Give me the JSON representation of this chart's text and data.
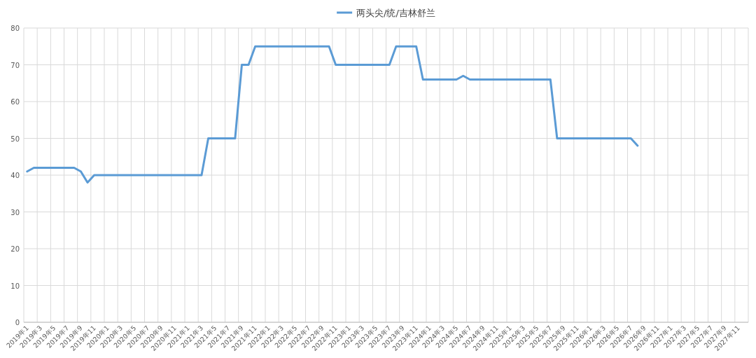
{
  "chart_data": {
    "type": "line",
    "categories": [
      "2019年1",
      null,
      "2019年3",
      null,
      "2019年5",
      null,
      "2019年7",
      null,
      "2019年9",
      null,
      "2019年11",
      null,
      "2020年1",
      null,
      "2020年3",
      null,
      "2020年5",
      null,
      "2020年7",
      null,
      "2020年9",
      null,
      "2020年11",
      null,
      "2021年1",
      null,
      "2021年3",
      null,
      "2021年5",
      null,
      "2021年7",
      null,
      "2021年9",
      null,
      "2021年11",
      null,
      "2022年1",
      null,
      "2022年3",
      null,
      "2022年5",
      null,
      "2022年7",
      null,
      "2022年9",
      null,
      "2022年11",
      null,
      "2023年1",
      null,
      "2023年3",
      null,
      "2023年5",
      null,
      "2023年7",
      null,
      "2023年9",
      null,
      "2023年11",
      null,
      "2024年1",
      null,
      "2024年3",
      null,
      "2024年5",
      null,
      "2024年7",
      null,
      "2024年9",
      null,
      "2024年11",
      null,
      "2025年1",
      null,
      "2025年3",
      null,
      "2025年5",
      null,
      "2025年7",
      null,
      "2025年9",
      null,
      "2025年11",
      null,
      "2026年1",
      null,
      "2026年3",
      null,
      "2026年5",
      null,
      "2026年7",
      null,
      "2026年9",
      null,
      "2026年11",
      null,
      "2027年1",
      null,
      "2027年3",
      null,
      "2027年5",
      null,
      "2027年7",
      null,
      "2027年9",
      null,
      "2027年11",
      null
    ],
    "series": [
      {
        "name": "两头尖/统/吉林舒兰",
        "color": "#5b9bd5",
        "values": [
          41,
          42,
          42,
          42,
          42,
          42,
          42,
          42,
          41,
          38,
          40,
          40,
          40,
          40,
          40,
          40,
          40,
          40,
          40,
          40,
          40,
          40,
          40,
          40,
          40,
          40,
          40,
          50,
          50,
          50,
          50,
          50,
          70,
          70,
          75,
          75,
          75,
          75,
          75,
          75,
          75,
          75,
          75,
          75,
          75,
          75,
          70,
          70,
          70,
          70,
          70,
          70,
          70,
          70,
          70,
          75,
          75,
          75,
          75,
          66,
          66,
          66,
          66,
          66,
          66,
          67,
          66,
          66,
          66,
          66,
          66,
          66,
          66,
          66,
          66,
          66,
          66,
          66,
          66,
          50,
          50,
          50,
          50,
          50,
          50,
          50,
          50,
          50,
          50,
          50,
          50,
          48,
          null,
          null,
          null,
          null,
          null,
          null,
          null,
          null,
          null,
          null,
          null,
          null,
          null,
          null,
          null,
          null
        ]
      }
    ],
    "ylim": [
      0,
      80
    ],
    "yticks": [
      0,
      10,
      20,
      30,
      40,
      50,
      60,
      70,
      80
    ],
    "grid": true,
    "legend": "top",
    "marker": "none",
    "line_style": "solid"
  }
}
